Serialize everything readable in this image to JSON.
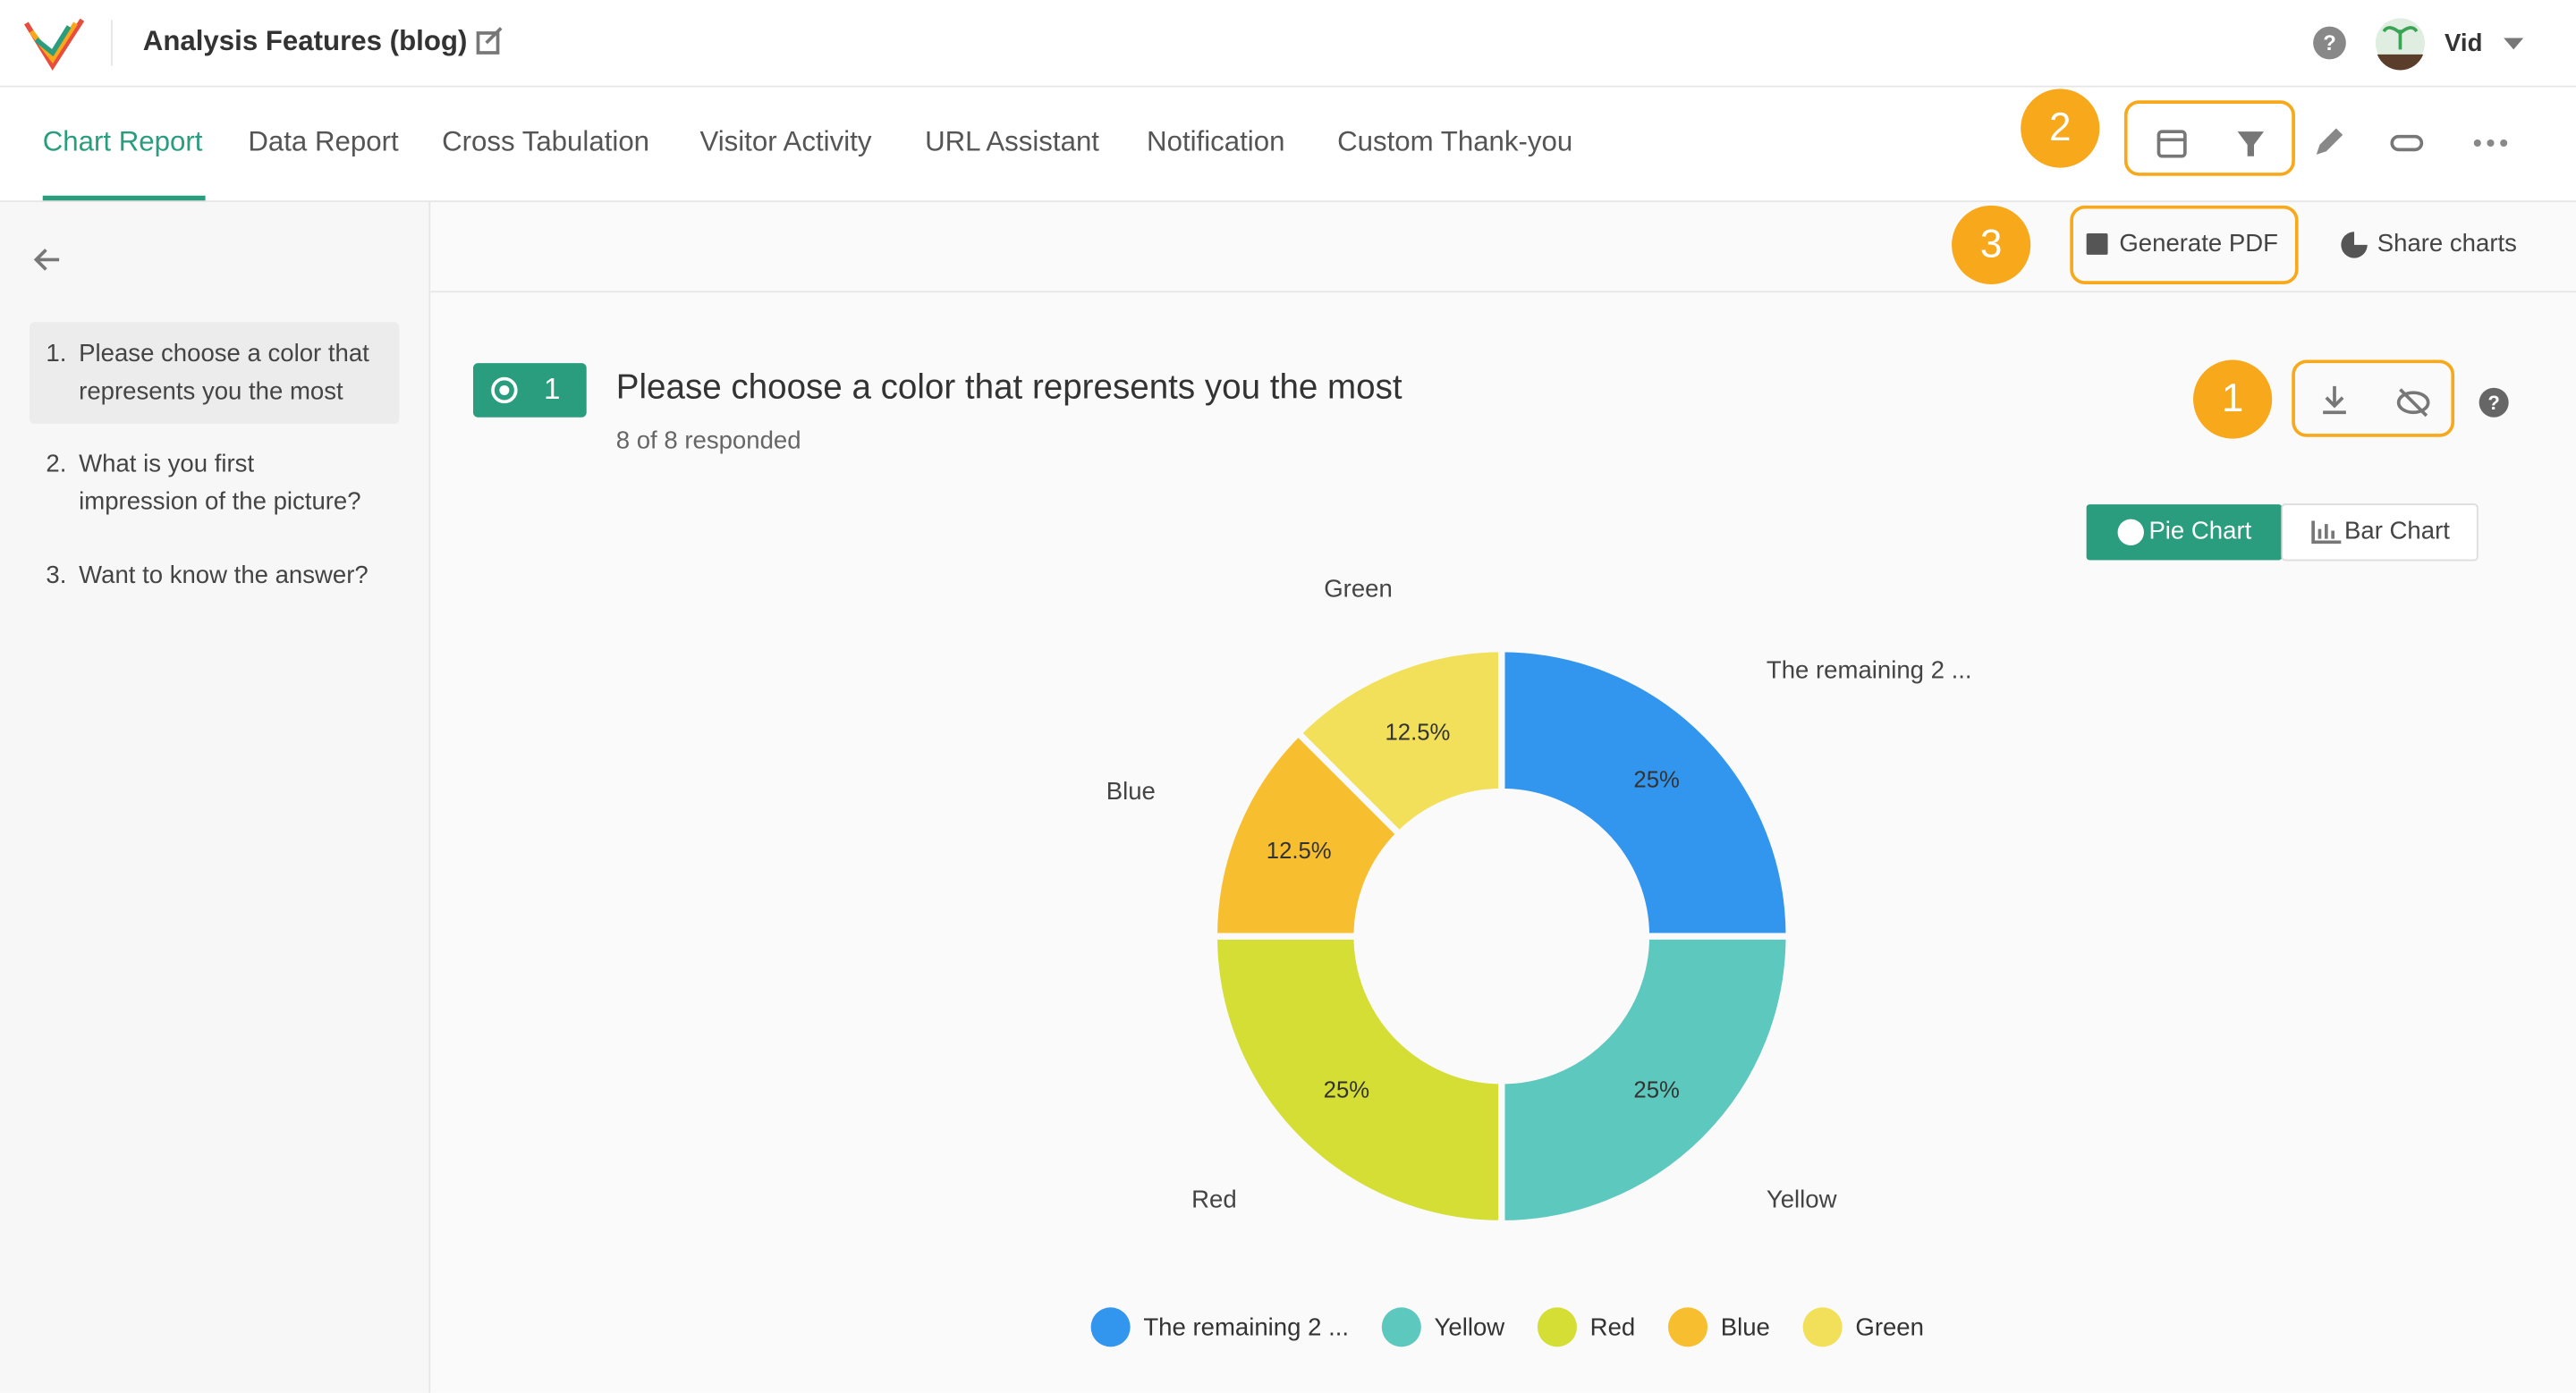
{
  "header": {
    "title": "Analysis Features (blog)",
    "user": "Vid"
  },
  "tabs": [
    "Chart Report",
    "Data Report",
    "Cross Tabulation",
    "Visitor Activity",
    "URL Assistant",
    "Notification",
    "Custom Thank-you"
  ],
  "toolbar": {
    "generate_pdf": "Generate PDF",
    "share_charts": "Share charts"
  },
  "badges": [
    "1",
    "2",
    "3"
  ],
  "sidebar": [
    {
      "number": "1.",
      "lines": [
        "Please choose a color that",
        "represents you the most"
      ]
    },
    {
      "number": "2.",
      "lines": [
        "What is you first",
        "impression of the picture?"
      ]
    },
    {
      "number": "3.",
      "lines": [
        "Want to know the answer?"
      ]
    }
  ],
  "question": {
    "number": "1",
    "title": "Please choose a color that represents you the most",
    "responded": "8 of 8 responded"
  },
  "chart_toggle": {
    "pie": "Pie Chart",
    "bar": "Bar Chart"
  },
  "chart_data": {
    "type": "pie",
    "donut": true,
    "categories": [
      "The remaining 2 ...",
      "Yellow",
      "Red",
      "Blue",
      "Green"
    ],
    "values": [
      25,
      25,
      25,
      12.5,
      12.5
    ],
    "value_labels": [
      "25%",
      "25%",
      "25%",
      "12.5%",
      "12.5%"
    ],
    "colors": [
      "#3296ef",
      "#5cc8be",
      "#d4de35",
      "#f7bf30",
      "#f2df5a"
    ],
    "legend": "bottom"
  }
}
